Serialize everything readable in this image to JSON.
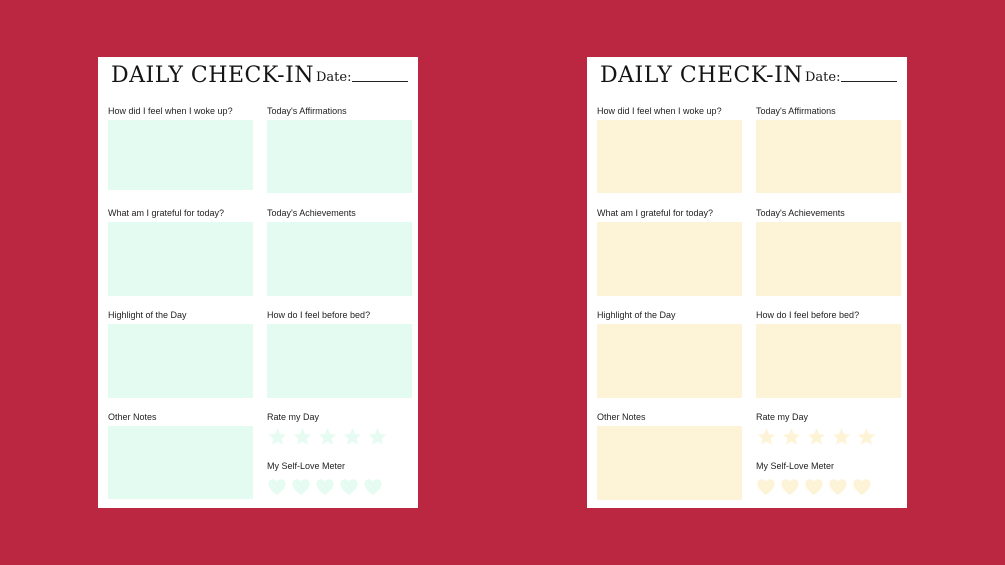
{
  "sheets": [
    {
      "title": "DAILY CHECK-IN",
      "date_label": "Date:",
      "box_color": "#e3fbf0",
      "icon_color": "#e6fbf2",
      "sections": {
        "woke_up": "How did I feel when I woke up?",
        "affirmations": "Today's  Affirmations",
        "grateful": "What am I grateful for today?",
        "achievements": "Today's  Achievements",
        "highlight": "Highlight of the Day",
        "before_bed": "How do I feel before bed?",
        "other_notes": "Other Notes",
        "rate_day": "Rate my Day",
        "self_love": "My Self-Love Meter"
      }
    },
    {
      "title": "DAILY CHECK-IN",
      "date_label": "Date:",
      "box_color": "#fdf4d8",
      "icon_color": "#fdf4d8",
      "sections": {
        "woke_up": "How did I feel when I woke up?",
        "affirmations": "Today's  Affirmations",
        "grateful": "What am I grateful for today?",
        "achievements": "Today's  Achievements",
        "highlight": "Highlight of the Day",
        "before_bed": "How do I feel before bed?",
        "other_notes": "Other Notes",
        "rate_day": "Rate my Day",
        "self_love": "My Self-Love Meter"
      }
    }
  ],
  "icons": {
    "rating": "star-icon",
    "meter": "heart-icon"
  }
}
